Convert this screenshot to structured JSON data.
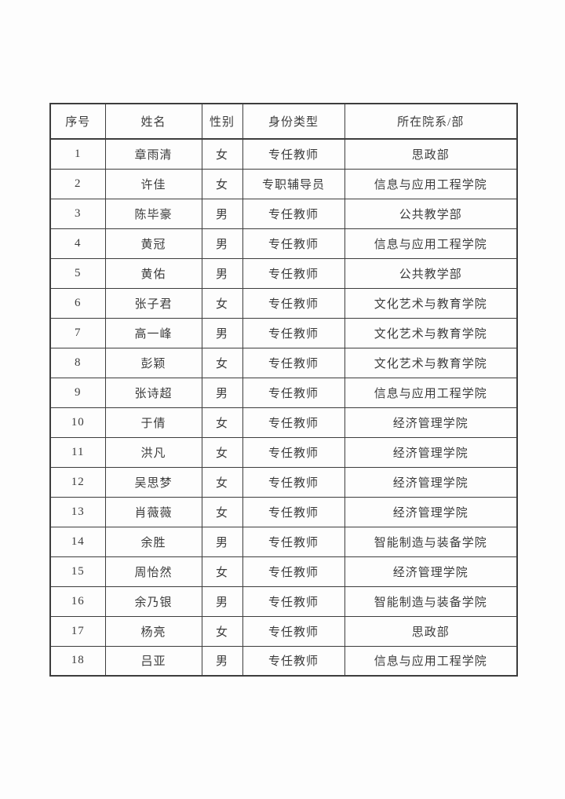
{
  "page": {
    "background_color": "#fdfdfd",
    "border_color": "#3d3d3d",
    "text_color": "#3c3c3c"
  },
  "table": {
    "columns": [
      "序号",
      "姓名",
      "性别",
      "身份类型",
      "所在院系/部"
    ],
    "rows": [
      [
        "1",
        "章雨清",
        "女",
        "专任教师",
        "思政部"
      ],
      [
        "2",
        "许佳",
        "女",
        "专职辅导员",
        "信息与应用工程学院"
      ],
      [
        "3",
        "陈毕豪",
        "男",
        "专任教师",
        "公共教学部"
      ],
      [
        "4",
        "黄冠",
        "男",
        "专任教师",
        "信息与应用工程学院"
      ],
      [
        "5",
        "黄佑",
        "男",
        "专任教师",
        "公共教学部"
      ],
      [
        "6",
        "张子君",
        "女",
        "专任教师",
        "文化艺术与教育学院"
      ],
      [
        "7",
        "高一峰",
        "男",
        "专任教师",
        "文化艺术与教育学院"
      ],
      [
        "8",
        "彭颖",
        "女",
        "专任教师",
        "文化艺术与教育学院"
      ],
      [
        "9",
        "张诗超",
        "男",
        "专任教师",
        "信息与应用工程学院"
      ],
      [
        "10",
        "于倩",
        "女",
        "专任教师",
        "经济管理学院"
      ],
      [
        "11",
        "洪凡",
        "女",
        "专任教师",
        "经济管理学院"
      ],
      [
        "12",
        "吴思梦",
        "女",
        "专任教师",
        "经济管理学院"
      ],
      [
        "13",
        "肖薇薇",
        "女",
        "专任教师",
        "经济管理学院"
      ],
      [
        "14",
        "余胜",
        "男",
        "专任教师",
        "智能制造与装备学院"
      ],
      [
        "15",
        "周怡然",
        "女",
        "专任教师",
        "经济管理学院"
      ],
      [
        "16",
        "余乃银",
        "男",
        "专任教师",
        "智能制造与装备学院"
      ],
      [
        "17",
        "杨亮",
        "女",
        "专任教师",
        "思政部"
      ],
      [
        "18",
        "吕亚",
        "男",
        "专任教师",
        "信息与应用工程学院"
      ]
    ]
  }
}
